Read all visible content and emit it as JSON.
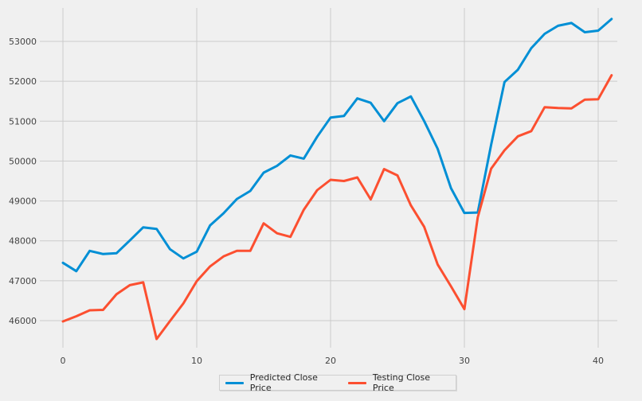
{
  "chart_data": {
    "type": "line",
    "title": "",
    "xlabel": "",
    "ylabel": "",
    "xlim": [
      -2,
      42
    ],
    "ylim": [
      45100,
      53700
    ],
    "x_ticks": [
      0,
      10,
      20,
      30,
      40
    ],
    "y_ticks": [
      46000,
      47000,
      48000,
      49000,
      50000,
      51000,
      52000,
      53000
    ],
    "grid": true,
    "legend_position": "bottom-center",
    "x": [
      0,
      1,
      2,
      3,
      4,
      5,
      6,
      7,
      8,
      9,
      10,
      11,
      12,
      13,
      14,
      15,
      16,
      17,
      18,
      19,
      20,
      21,
      22,
      23,
      24,
      25,
      26,
      27,
      28,
      29,
      30,
      31,
      32,
      33,
      34,
      35,
      36,
      37,
      38,
      39,
      40,
      41
    ],
    "series": [
      {
        "name": "Predicted Close Price",
        "color": "#008fd5",
        "values": [
          47450,
          47240,
          47750,
          47670,
          47690,
          48010,
          48340,
          48300,
          47790,
          47560,
          47730,
          48390,
          48690,
          49050,
          49250,
          49710,
          49880,
          50140,
          50060,
          50610,
          51090,
          51130,
          51570,
          51460,
          51000,
          51450,
          51620,
          51000,
          50310,
          49320,
          48700,
          48710,
          50410,
          51980,
          52290,
          52830,
          53190,
          53390,
          53460,
          53230,
          53270,
          53560
        ]
      },
      {
        "name": "Testing Close Price",
        "color": "#fc4f30",
        "values": [
          45980,
          46110,
          46260,
          46270,
          46660,
          46890,
          46960,
          45540,
          45990,
          46430,
          46990,
          47360,
          47610,
          47750,
          47750,
          48440,
          48190,
          48100,
          48780,
          49270,
          49530,
          49500,
          49590,
          49040,
          49800,
          49640,
          48890,
          48350,
          47410,
          46860,
          46290,
          48590,
          49810,
          50270,
          50620,
          50750,
          51350,
          51330,
          51320,
          51540,
          51550,
          52150
        ]
      }
    ]
  }
}
